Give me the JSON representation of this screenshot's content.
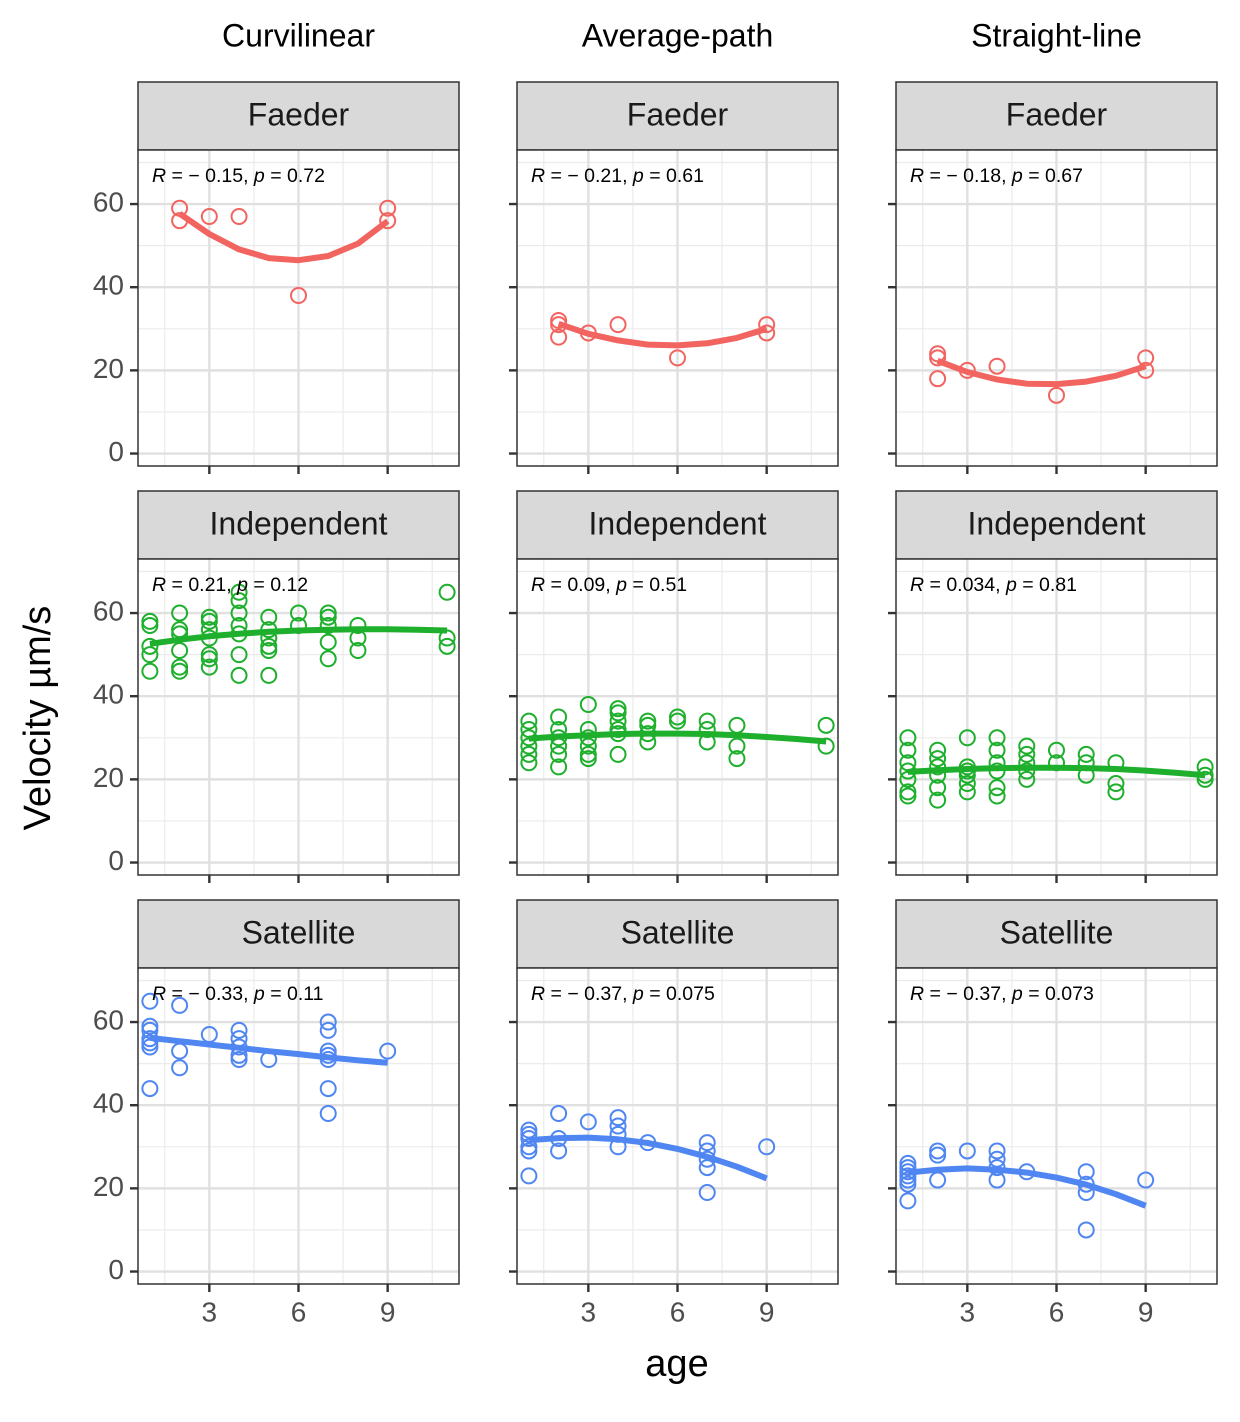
{
  "chart_data": {
    "type": "scatter",
    "title": "",
    "xlabel": "age",
    "ylabel": "Velocity µm/s",
    "xlim": [
      0.6,
      11.4
    ],
    "ylim": [
      -3,
      73
    ],
    "x_ticks": [
      3,
      6,
      9
    ],
    "y_ticks": [
      0,
      20,
      40,
      60
    ],
    "grid": true,
    "legend": "none",
    "column_headers": [
      "Curvilinear",
      "Average-path",
      "Straight-line"
    ],
    "row_headers": [
      "Faeder",
      "Independent",
      "Satellite"
    ],
    "colors": {
      "Faeder": "#F26460",
      "Independent": "#1EAF2D",
      "Satellite": "#4F86F2"
    },
    "panels": [
      {
        "row": "Faeder",
        "column": "Curvilinear",
        "stat": [
          "-0.15",
          "0.72"
        ],
        "points": [
          [
            2,
            59
          ],
          [
            2,
            56
          ],
          [
            3,
            57
          ],
          [
            4,
            57
          ],
          [
            6,
            38
          ],
          [
            9,
            59
          ],
          [
            9,
            56
          ]
        ],
        "fit": [
          [
            2,
            57.7
          ],
          [
            3,
            52.8
          ],
          [
            4,
            49.1
          ],
          [
            5,
            47.0
          ],
          [
            6,
            46.5
          ],
          [
            7,
            47.5
          ],
          [
            8,
            50.5
          ],
          [
            9,
            55.9
          ]
        ]
      },
      {
        "row": "Faeder",
        "column": "Average-path",
        "stat": [
          "-0.21",
          "0.61"
        ],
        "points": [
          [
            2,
            32
          ],
          [
            2,
            31
          ],
          [
            2,
            28
          ],
          [
            3,
            29
          ],
          [
            4,
            31
          ],
          [
            6,
            23
          ],
          [
            9,
            31
          ],
          [
            9,
            29
          ]
        ],
        "fit": [
          [
            2,
            31.2
          ],
          [
            3,
            28.8
          ],
          [
            4,
            27.2
          ],
          [
            5,
            26.2
          ],
          [
            6,
            26.0
          ],
          [
            7,
            26.5
          ],
          [
            8,
            27.8
          ],
          [
            9,
            30.0
          ]
        ]
      },
      {
        "row": "Faeder",
        "column": "Straight-line",
        "stat": [
          "-0.18",
          "0.67"
        ],
        "points": [
          [
            2,
            24
          ],
          [
            2,
            23
          ],
          [
            2,
            18
          ],
          [
            3,
            20
          ],
          [
            4,
            21
          ],
          [
            6,
            14
          ],
          [
            9,
            23
          ],
          [
            9,
            20
          ]
        ],
        "fit": [
          [
            2,
            22.3
          ],
          [
            3,
            19.6
          ],
          [
            4,
            17.8
          ],
          [
            5,
            16.8
          ],
          [
            6,
            16.7
          ],
          [
            7,
            17.3
          ],
          [
            8,
            18.7
          ],
          [
            9,
            21.0
          ]
        ]
      },
      {
        "row": "Independent",
        "column": "Curvilinear",
        "stat": [
          "0.21",
          "0.12"
        ],
        "points": [
          [
            1,
            58
          ],
          [
            1,
            57
          ],
          [
            1,
            52
          ],
          [
            1,
            50
          ],
          [
            1,
            46
          ],
          [
            2,
            60
          ],
          [
            2,
            56
          ],
          [
            2,
            55
          ],
          [
            2,
            51
          ],
          [
            2,
            47
          ],
          [
            2,
            46
          ],
          [
            3,
            59
          ],
          [
            3,
            58
          ],
          [
            3,
            56
          ],
          [
            3,
            54
          ],
          [
            3,
            50
          ],
          [
            3,
            49
          ],
          [
            3,
            47
          ],
          [
            4,
            65
          ],
          [
            4,
            63
          ],
          [
            4,
            60
          ],
          [
            4,
            57
          ],
          [
            4,
            55
          ],
          [
            4,
            50
          ],
          [
            4,
            45
          ],
          [
            5,
            59
          ],
          [
            5,
            56
          ],
          [
            5,
            54
          ],
          [
            5,
            52
          ],
          [
            5,
            51
          ],
          [
            5,
            45
          ],
          [
            6,
            60
          ],
          [
            6,
            57
          ],
          [
            7,
            60
          ],
          [
            7,
            59
          ],
          [
            7,
            57
          ],
          [
            7,
            53
          ],
          [
            7,
            49
          ],
          [
            8,
            57
          ],
          [
            8,
            54
          ],
          [
            8,
            51
          ],
          [
            11,
            65
          ],
          [
            11,
            54
          ],
          [
            11,
            52
          ]
        ],
        "fit": [
          [
            1,
            52.6
          ],
          [
            2,
            53.6
          ],
          [
            3,
            54.4
          ],
          [
            4,
            55.0
          ],
          [
            5,
            55.5
          ],
          [
            6,
            55.8
          ],
          [
            7,
            56.0
          ],
          [
            8,
            56.1
          ],
          [
            9,
            56.1
          ],
          [
            10,
            56.0
          ],
          [
            11,
            55.8
          ]
        ]
      },
      {
        "row": "Independent",
        "column": "Average-path",
        "stat": [
          "0.09",
          "0.51"
        ],
        "points": [
          [
            1,
            34
          ],
          [
            1,
            32
          ],
          [
            1,
            30
          ],
          [
            1,
            28
          ],
          [
            1,
            26
          ],
          [
            1,
            24
          ],
          [
            2,
            35
          ],
          [
            2,
            32
          ],
          [
            2,
            30
          ],
          [
            2,
            28
          ],
          [
            2,
            26
          ],
          [
            2,
            23
          ],
          [
            3,
            38
          ],
          [
            3,
            32
          ],
          [
            3,
            30
          ],
          [
            3,
            28
          ],
          [
            3,
            26
          ],
          [
            3,
            25
          ],
          [
            4,
            37
          ],
          [
            4,
            36
          ],
          [
            4,
            34
          ],
          [
            4,
            32
          ],
          [
            4,
            31
          ],
          [
            4,
            26
          ],
          [
            5,
            34
          ],
          [
            5,
            33
          ],
          [
            5,
            31
          ],
          [
            5,
            29
          ],
          [
            6,
            35
          ],
          [
            6,
            34
          ],
          [
            7,
            34
          ],
          [
            7,
            32
          ],
          [
            7,
            29
          ],
          [
            8,
            33
          ],
          [
            8,
            28
          ],
          [
            8,
            25
          ],
          [
            11,
            33
          ],
          [
            11,
            28
          ]
        ],
        "fit": [
          [
            1,
            29.8
          ],
          [
            2,
            30.3
          ],
          [
            3,
            30.6
          ],
          [
            4,
            30.9
          ],
          [
            5,
            31.0
          ],
          [
            6,
            31.0
          ],
          [
            7,
            30.9
          ],
          [
            8,
            30.6
          ],
          [
            9,
            30.2
          ],
          [
            10,
            29.7
          ],
          [
            11,
            29.1
          ]
        ]
      },
      {
        "row": "Independent",
        "column": "Straight-line",
        "stat": [
          "0.034",
          "0.81"
        ],
        "points": [
          [
            1,
            30
          ],
          [
            1,
            27
          ],
          [
            1,
            24
          ],
          [
            1,
            22
          ],
          [
            1,
            20
          ],
          [
            1,
            17
          ],
          [
            1,
            16
          ],
          [
            2,
            27
          ],
          [
            2,
            25
          ],
          [
            2,
            23
          ],
          [
            2,
            21
          ],
          [
            2,
            18
          ],
          [
            2,
            15
          ],
          [
            3,
            30
          ],
          [
            3,
            23
          ],
          [
            3,
            22
          ],
          [
            3,
            21
          ],
          [
            3,
            19
          ],
          [
            3,
            17
          ],
          [
            4,
            30
          ],
          [
            4,
            27
          ],
          [
            4,
            24
          ],
          [
            4,
            22
          ],
          [
            4,
            18
          ],
          [
            4,
            16
          ],
          [
            5,
            28
          ],
          [
            5,
            26
          ],
          [
            5,
            24
          ],
          [
            5,
            22
          ],
          [
            5,
            20
          ],
          [
            6,
            27
          ],
          [
            6,
            24
          ],
          [
            7,
            26
          ],
          [
            7,
            24
          ],
          [
            7,
            21
          ],
          [
            8,
            24
          ],
          [
            8,
            19
          ],
          [
            8,
            17
          ],
          [
            11,
            23
          ],
          [
            11,
            21
          ],
          [
            11,
            20
          ]
        ],
        "fit": [
          [
            1,
            21.8
          ],
          [
            2,
            22.2
          ],
          [
            3,
            22.5
          ],
          [
            4,
            22.7
          ],
          [
            5,
            22.8
          ],
          [
            6,
            22.8
          ],
          [
            7,
            22.7
          ],
          [
            8,
            22.5
          ],
          [
            9,
            22.1
          ],
          [
            10,
            21.6
          ],
          [
            11,
            21.0
          ]
        ]
      },
      {
        "row": "Satellite",
        "column": "Curvilinear",
        "stat": [
          "-0.33",
          "0.11"
        ],
        "points": [
          [
            1,
            65
          ],
          [
            1,
            59
          ],
          [
            1,
            58
          ],
          [
            1,
            56
          ],
          [
            1,
            55
          ],
          [
            1,
            54
          ],
          [
            1,
            44
          ],
          [
            2,
            64
          ],
          [
            2,
            53
          ],
          [
            2,
            49
          ],
          [
            3,
            57
          ],
          [
            4,
            58
          ],
          [
            4,
            56
          ],
          [
            4,
            54
          ],
          [
            4,
            52
          ],
          [
            4,
            51
          ],
          [
            5,
            51
          ],
          [
            7,
            60
          ],
          [
            7,
            58
          ],
          [
            7,
            53
          ],
          [
            7,
            52
          ],
          [
            7,
            51
          ],
          [
            7,
            44
          ],
          [
            7,
            38
          ],
          [
            9,
            53
          ]
        ],
        "fit": [
          [
            1,
            56.2
          ],
          [
            2,
            55.4
          ],
          [
            3,
            54.6
          ],
          [
            4,
            53.8
          ],
          [
            5,
            53.0
          ],
          [
            6,
            52.3
          ],
          [
            7,
            51.5
          ],
          [
            8,
            50.8
          ],
          [
            9,
            50.2
          ]
        ]
      },
      {
        "row": "Satellite",
        "column": "Average-path",
        "stat": [
          "-0.37",
          "0.075"
        ],
        "points": [
          [
            1,
            34
          ],
          [
            1,
            33
          ],
          [
            1,
            32
          ],
          [
            1,
            30
          ],
          [
            1,
            29
          ],
          [
            1,
            23
          ],
          [
            2,
            38
          ],
          [
            2,
            32
          ],
          [
            2,
            29
          ],
          [
            3,
            36
          ],
          [
            4,
            37
          ],
          [
            4,
            35
          ],
          [
            4,
            33
          ],
          [
            4,
            30
          ],
          [
            5,
            31
          ],
          [
            7,
            31
          ],
          [
            7,
            29
          ],
          [
            7,
            27
          ],
          [
            7,
            25
          ],
          [
            7,
            19
          ],
          [
            9,
            30
          ]
        ],
        "fit": [
          [
            1,
            31.6
          ],
          [
            2,
            32.1
          ],
          [
            3,
            32.2
          ],
          [
            4,
            31.8
          ],
          [
            5,
            30.9
          ],
          [
            6,
            29.5
          ],
          [
            7,
            27.6
          ],
          [
            8,
            25.2
          ],
          [
            9,
            22.4
          ]
        ]
      },
      {
        "row": "Satellite",
        "column": "Straight-line",
        "stat": [
          "-0.37",
          "0.073"
        ],
        "points": [
          [
            1,
            26
          ],
          [
            1,
            25
          ],
          [
            1,
            24
          ],
          [
            1,
            23
          ],
          [
            1,
            22
          ],
          [
            1,
            21
          ],
          [
            1,
            17
          ],
          [
            2,
            29
          ],
          [
            2,
            28
          ],
          [
            2,
            22
          ],
          [
            3,
            29
          ],
          [
            4,
            29
          ],
          [
            4,
            27
          ],
          [
            4,
            25
          ],
          [
            4,
            22
          ],
          [
            5,
            24
          ],
          [
            7,
            24
          ],
          [
            7,
            21
          ],
          [
            7,
            19
          ],
          [
            7,
            10
          ],
          [
            9,
            22
          ]
        ],
        "fit": [
          [
            1,
            23.8
          ],
          [
            2,
            24.5
          ],
          [
            3,
            24.8
          ],
          [
            4,
            24.5
          ],
          [
            5,
            23.8
          ],
          [
            6,
            22.6
          ],
          [
            7,
            20.9
          ],
          [
            8,
            18.6
          ],
          [
            9,
            15.8
          ]
        ]
      }
    ]
  }
}
